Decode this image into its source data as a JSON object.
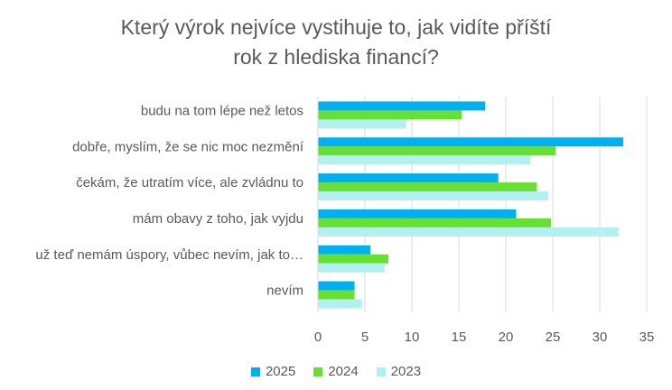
{
  "chart_data": {
    "type": "bar",
    "orientation": "horizontal",
    "title_lines": [
      "Který výrok nejvíce vystihuje to, jak vidíte příští",
      "rok z hlediska financí?"
    ],
    "categories": [
      "budu na tom lépe než letos",
      "dobře, myslím, že se nic moc nezmění",
      "čekám, že utratím více, ale zvládnu to",
      "mám obavy z toho, jak vyjdu",
      "už teď nemám úspory, vůbec nevím, jak to…",
      "nevím"
    ],
    "series": [
      {
        "name": "2025",
        "color": "#00B0F0",
        "values": [
          17.8,
          32.5,
          19.2,
          21.1,
          5.6,
          3.9
        ]
      },
      {
        "name": "2024",
        "color": "#66E033",
        "values": [
          15.3,
          25.3,
          23.3,
          24.8,
          7.5,
          3.9
        ]
      },
      {
        "name": "2023",
        "color": "#B3F0F0",
        "values": [
          9.4,
          22.6,
          24.5,
          32.0,
          7.1,
          4.7
        ]
      }
    ],
    "xlim": [
      0,
      35
    ],
    "xticks": [
      "0",
      "5",
      "10",
      "15",
      "20",
      "25",
      "30",
      "35"
    ],
    "grid": true,
    "legend_position": "bottom"
  }
}
